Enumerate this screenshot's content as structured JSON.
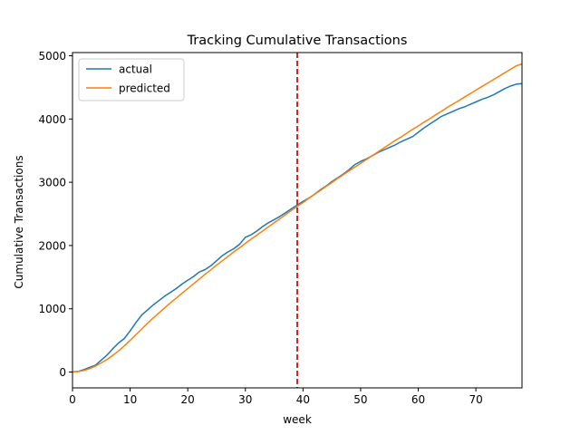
{
  "chart_data": {
    "type": "line",
    "title": "Tracking Cumulative Transactions",
    "xlabel": "week",
    "ylabel": "Cumulative Transactions",
    "xlim": [
      0,
      78
    ],
    "ylim": [
      -250,
      5050
    ],
    "xticks": [
      0,
      10,
      20,
      30,
      40,
      50,
      60,
      70
    ],
    "yticks": [
      0,
      1000,
      2000,
      3000,
      4000,
      5000
    ],
    "grid": false,
    "legend": "top-left",
    "vline": {
      "x": 39,
      "color": "#d62728",
      "style": "dashed"
    },
    "series": [
      {
        "name": "actual",
        "color": "#1f77b4",
        "x": [
          0,
          1,
          2,
          3,
          4,
          5,
          6,
          7,
          8,
          9,
          10,
          11,
          12,
          13,
          14,
          15,
          16,
          17,
          18,
          19,
          20,
          21,
          22,
          23,
          24,
          25,
          26,
          27,
          28,
          29,
          30,
          31,
          32,
          33,
          34,
          35,
          36,
          37,
          38,
          39,
          40,
          41,
          42,
          43,
          44,
          45,
          46,
          47,
          48,
          49,
          50,
          51,
          52,
          53,
          54,
          55,
          56,
          57,
          58,
          59,
          60,
          61,
          62,
          63,
          64,
          65,
          66,
          67,
          68,
          69,
          70,
          71,
          72,
          73,
          74,
          75,
          76,
          77,
          78
        ],
        "y": [
          0,
          10,
          40,
          75,
          110,
          190,
          270,
          370,
          460,
          530,
          650,
          780,
          900,
          980,
          1060,
          1130,
          1200,
          1260,
          1320,
          1390,
          1450,
          1510,
          1580,
          1620,
          1680,
          1760,
          1840,
          1900,
          1950,
          2020,
          2130,
          2170,
          2230,
          2300,
          2360,
          2410,
          2460,
          2520,
          2580,
          2640,
          2700,
          2750,
          2810,
          2880,
          2940,
          3010,
          3070,
          3130,
          3200,
          3280,
          3330,
          3370,
          3420,
          3470,
          3510,
          3550,
          3590,
          3640,
          3680,
          3720,
          3790,
          3860,
          3920,
          3980,
          4040,
          4080,
          4120,
          4160,
          4190,
          4230,
          4270,
          4310,
          4340,
          4380,
          4430,
          4480,
          4520,
          4550,
          4560
        ]
      },
      {
        "name": "predicted",
        "color": "#ff7f0e",
        "x": [
          0,
          1,
          2,
          3,
          4,
          5,
          6,
          7,
          8,
          9,
          10,
          11,
          12,
          13,
          14,
          15,
          16,
          17,
          18,
          19,
          20,
          21,
          22,
          23,
          24,
          25,
          26,
          27,
          28,
          29,
          30,
          31,
          32,
          33,
          34,
          35,
          36,
          37,
          38,
          39,
          40,
          41,
          42,
          43,
          44,
          45,
          46,
          47,
          48,
          49,
          50,
          51,
          52,
          53,
          54,
          55,
          56,
          57,
          58,
          59,
          60,
          61,
          62,
          63,
          64,
          65,
          66,
          67,
          68,
          69,
          70,
          71,
          72,
          73,
          74,
          75,
          76,
          77,
          78
        ],
        "y": [
          0,
          8,
          25,
          55,
          95,
          145,
          200,
          265,
          335,
          415,
          500,
          590,
          680,
          770,
          855,
          935,
          1015,
          1095,
          1170,
          1245,
          1320,
          1395,
          1470,
          1545,
          1615,
          1690,
          1760,
          1830,
          1900,
          1965,
          2035,
          2100,
          2165,
          2230,
          2295,
          2360,
          2425,
          2490,
          2555,
          2620,
          2680,
          2745,
          2810,
          2870,
          2935,
          2995,
          3060,
          3120,
          3180,
          3240,
          3300,
          3360,
          3420,
          3480,
          3540,
          3600,
          3660,
          3715,
          3775,
          3835,
          3890,
          3950,
          4005,
          4065,
          4120,
          4180,
          4235,
          4290,
          4345,
          4400,
          4455,
          4510,
          4565,
          4620,
          4675,
          4730,
          4785,
          4840,
          4870
        ]
      }
    ]
  }
}
